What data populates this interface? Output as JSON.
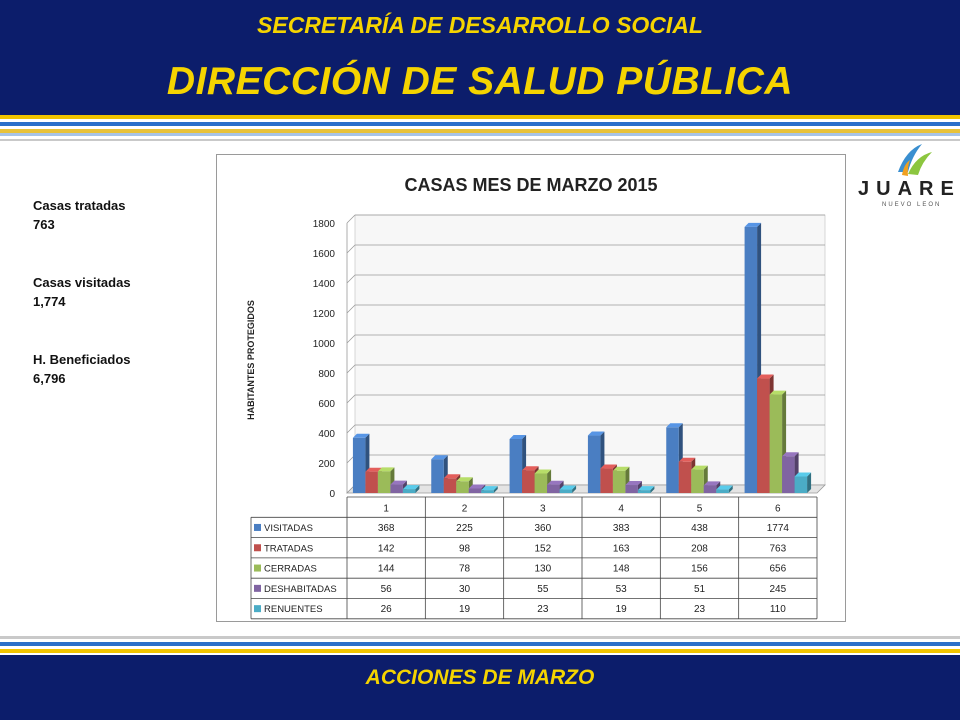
{
  "header": {
    "subtitle": "SECRETARÍA DE DESARROLLO SOCIAL",
    "title": "DIRECCIÓN DE SALUD PÚBLICA"
  },
  "footer": {
    "text": "ACCIONES DE MARZO"
  },
  "stats": [
    {
      "label": "Casas tratadas",
      "value": "763"
    },
    {
      "label": "Casas visitadas",
      "value": "1,774"
    },
    {
      "label": "H. Beneficiados",
      "value": "6,796"
    }
  ],
  "logo": {
    "word": "JUAREZ",
    "sub": "NUEVO LEON"
  },
  "colors": {
    "band": "#0c1d6b",
    "accent": "#f5d400"
  },
  "chart_data": {
    "type": "bar",
    "title": "CASAS MES DE MARZO 2015",
    "ylabel": "HABITANTES PROTEGIDOS",
    "xlabel": "",
    "ylim": [
      0,
      1800
    ],
    "yticks": [
      0,
      200,
      400,
      600,
      800,
      1000,
      1200,
      1400,
      1600,
      1800
    ],
    "categories": [
      "1",
      "2",
      "3",
      "4",
      "5",
      "6"
    ],
    "legend": "data-table",
    "series": [
      {
        "name": "VISITADAS",
        "color": "#4a7ec2",
        "values": [
          368,
          225,
          360,
          383,
          438,
          1774
        ]
      },
      {
        "name": "TRATADAS",
        "color": "#c0504d",
        "values": [
          142,
          98,
          152,
          163,
          208,
          763
        ]
      },
      {
        "name": "CERRADAS",
        "color": "#9bbb59",
        "values": [
          144,
          78,
          130,
          148,
          156,
          656
        ]
      },
      {
        "name": "DESHABITADAS",
        "color": "#8064a2",
        "values": [
          56,
          30,
          55,
          53,
          51,
          245
        ]
      },
      {
        "name": "RENUENTES",
        "color": "#4bacc6",
        "values": [
          26,
          19,
          23,
          19,
          23,
          110
        ]
      }
    ]
  }
}
